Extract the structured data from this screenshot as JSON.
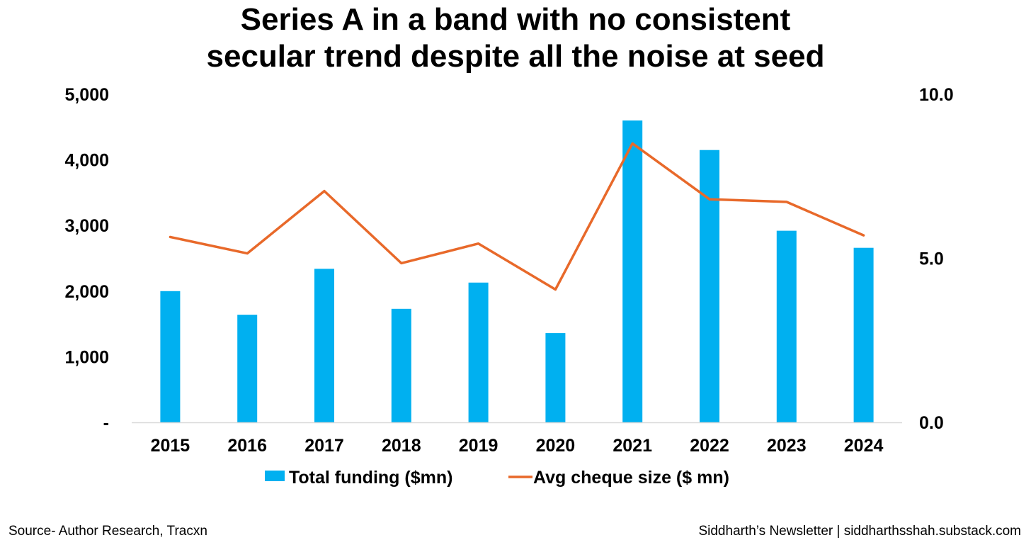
{
  "title_lines": [
    "Series A in a band with no consistent",
    "secular trend despite all the noise at seed"
  ],
  "chart_data": {
    "type": "bar",
    "title": "Series A in a band with no consistent secular trend despite all the noise at seed",
    "categories": [
      "2015",
      "2016",
      "2017",
      "2018",
      "2019",
      "2020",
      "2021",
      "2022",
      "2023",
      "2024"
    ],
    "series": [
      {
        "name": "Total funding ($mn)",
        "type": "bar",
        "axis": "left",
        "color": "#00b0f0",
        "values": [
          2000,
          1640,
          2340,
          1730,
          2130,
          1360,
          4600,
          4150,
          2920,
          2660
        ]
      },
      {
        "name": "Avg cheque size ($ mn)",
        "type": "line",
        "axis": "right",
        "color": "#e8692a",
        "values": [
          5.65,
          5.15,
          7.05,
          4.85,
          5.45,
          4.05,
          8.5,
          6.8,
          6.72,
          5.7
        ]
      }
    ],
    "y_left": {
      "min": 0,
      "max": 5000,
      "ticks": [
        0,
        1000,
        2000,
        3000,
        4000,
        5000
      ],
      "tick_labels": [
        "-",
        "1,000",
        "2,000",
        "3,000",
        "4,000",
        "5,000"
      ]
    },
    "y_right": {
      "min": 0,
      "max": 10,
      "ticks": [
        0,
        5,
        10
      ],
      "tick_labels": [
        "0.0",
        "5.0",
        "10.0"
      ]
    },
    "xlabel": "",
    "ylabel": "",
    "legend_position": "bottom",
    "grid": false
  },
  "footer": {
    "source": "Source- Author Research, Tracxn",
    "credit": "Siddharth’s Newsletter | siddharthsshah.substack.com"
  }
}
